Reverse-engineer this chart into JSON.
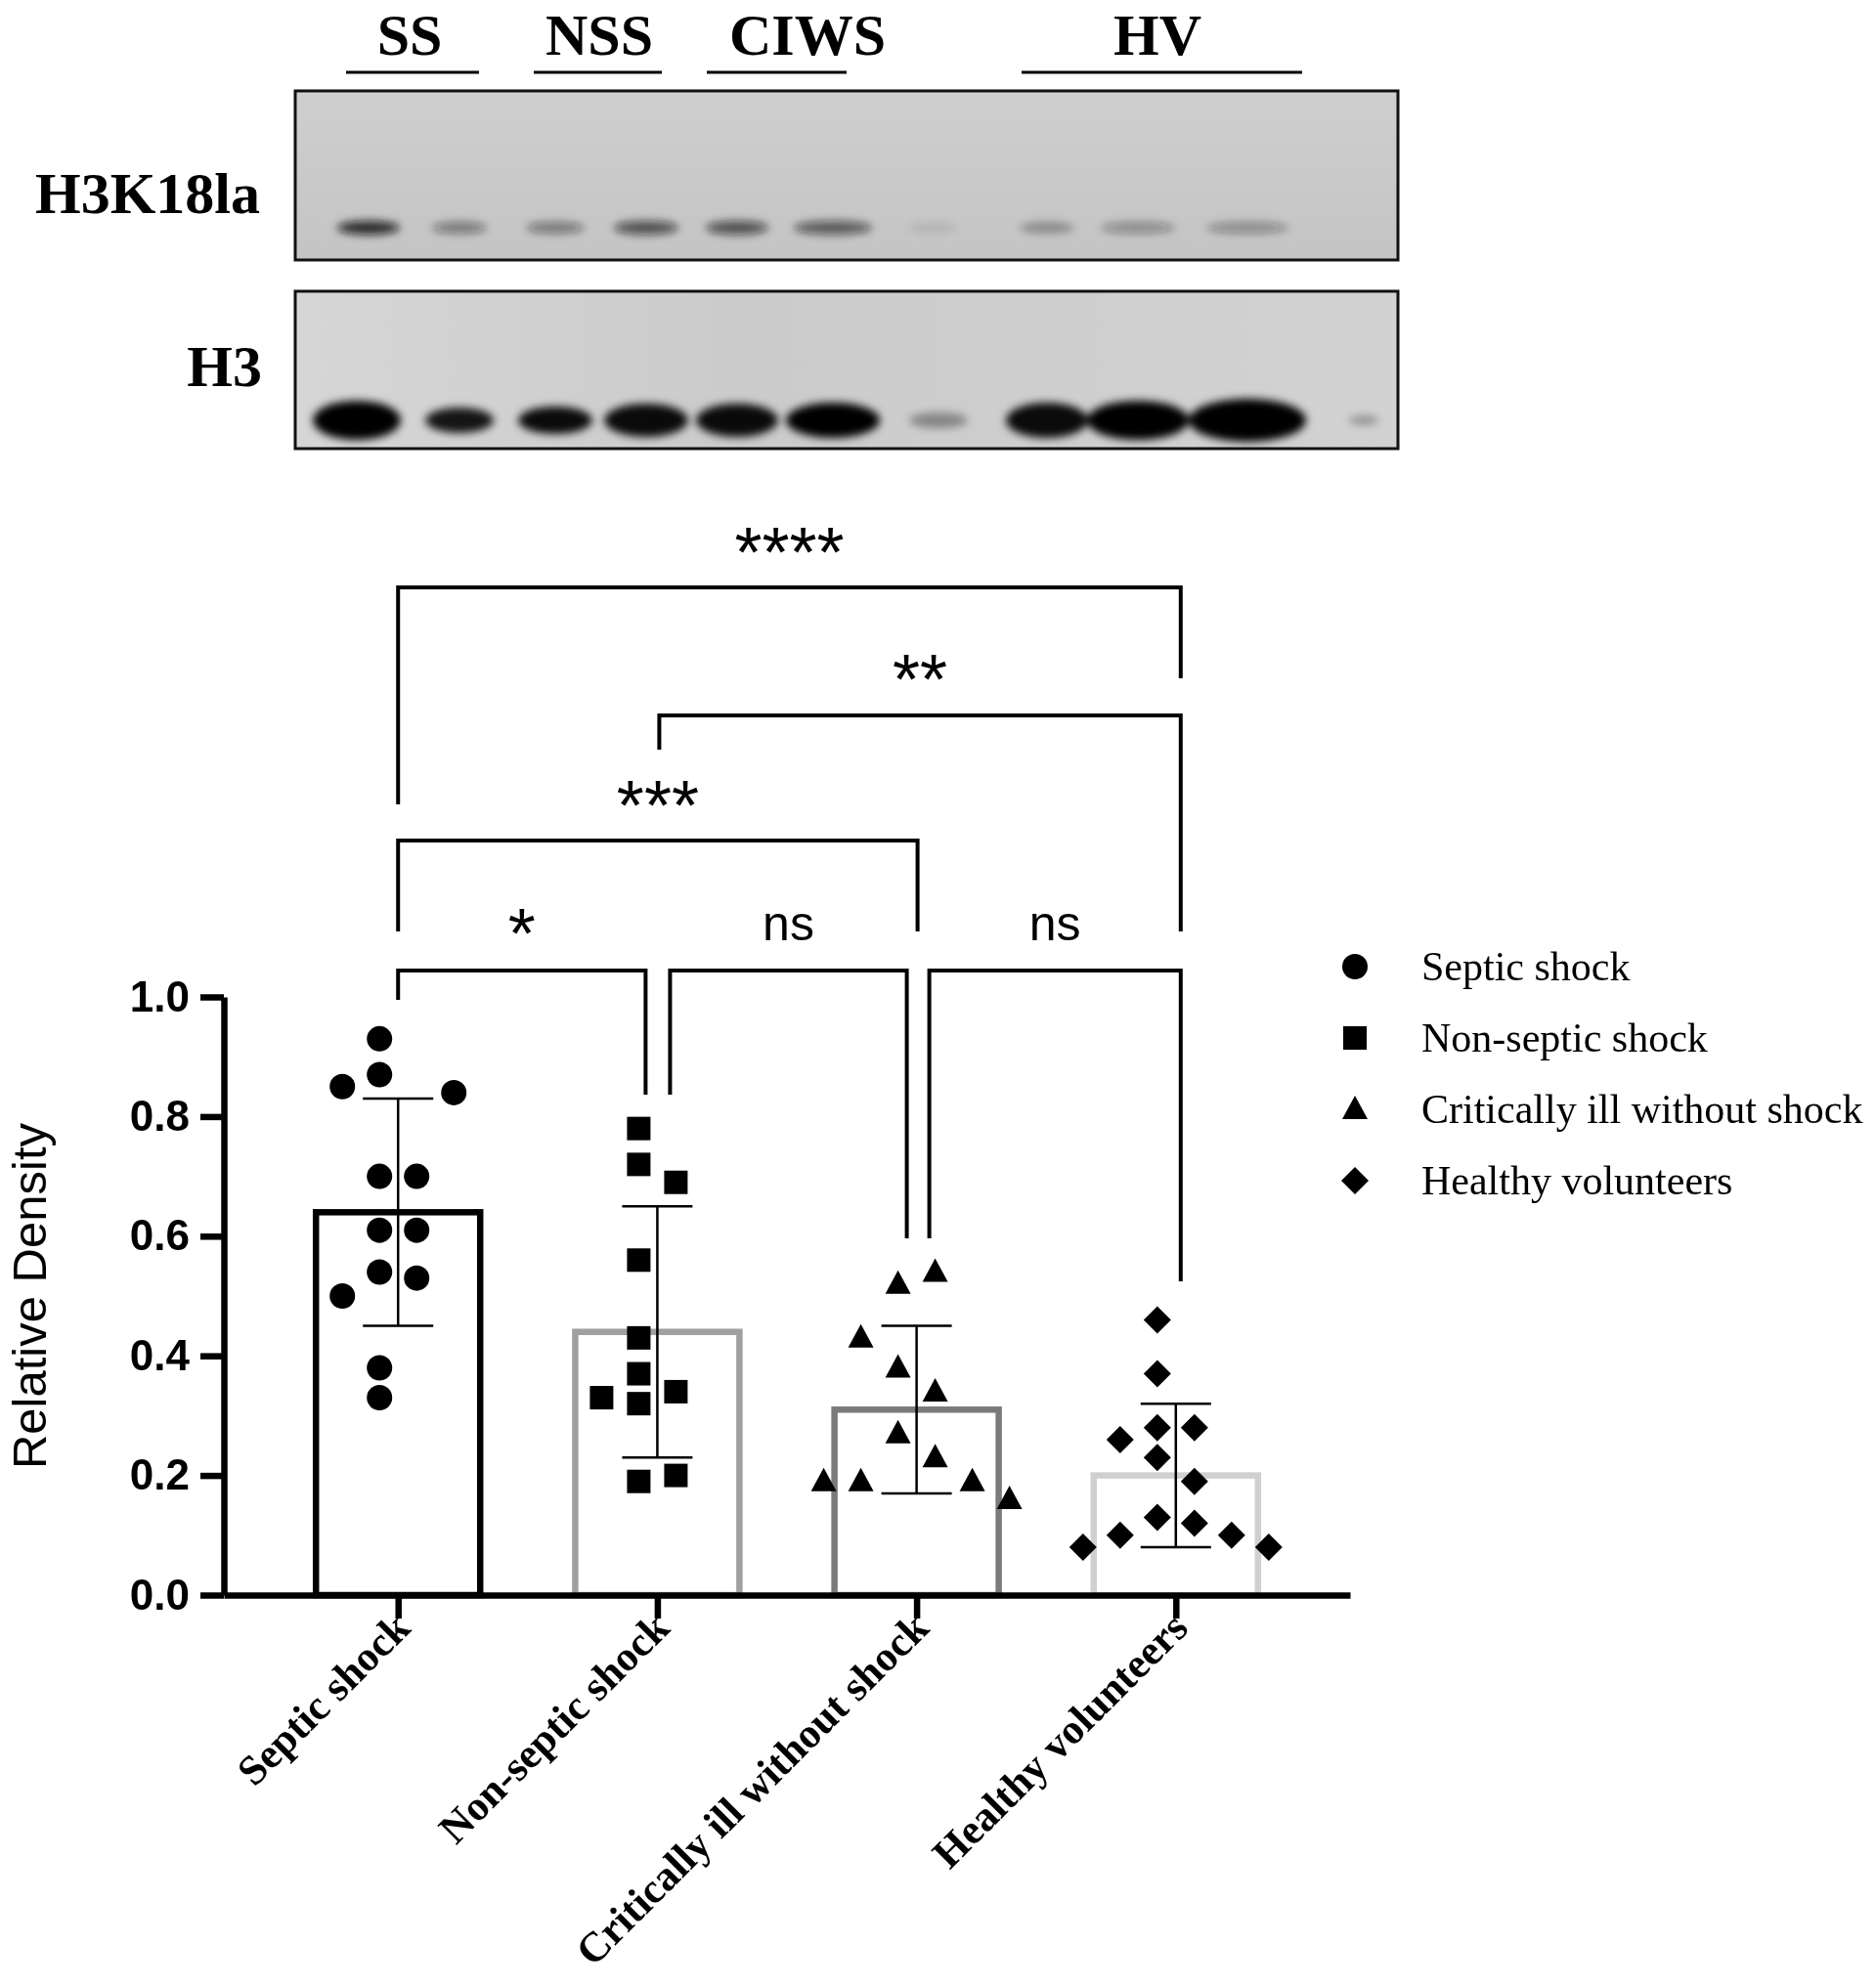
{
  "chart_data": {
    "type": "bar",
    "categories": [
      "Septic shock",
      "Non-septic shock",
      "Critically ill without shock",
      "Healthy volunteers"
    ],
    "series": [
      {
        "colors": [
          "#000000",
          "#a0a0a0",
          "#7a7a7a",
          "#d0d0d0"
        ],
        "values": [
          0.64,
          0.44,
          0.31,
          0.2
        ],
        "errors": [
          0.19,
          0.21,
          0.14,
          0.12
        ]
      },
      {
        "type": "scatter",
        "name": "Septic shock",
        "color": "#000000",
        "marker": "circle",
        "x": [
          "Septic shock",
          "Septic shock",
          "Septic shock",
          "Septic shock",
          "Septic shock",
          "Septic shock",
          "Septic shock",
          "Septic shock",
          "Septic shock",
          "Septic shock",
          "Septic shock",
          "Septic shock",
          "Septic shock"
        ],
        "values": [
          0.93,
          0.85,
          0.84,
          0.87,
          0.7,
          0.7,
          0.61,
          0.61,
          0.54,
          0.53,
          0.5,
          0.38,
          0.33
        ]
      },
      {
        "type": "scatter",
        "name": "Non-septic shock",
        "color": "#000000",
        "marker": "square",
        "x": [
          "Non-septic shock",
          "Non-septic shock",
          "Non-septic shock",
          "Non-septic shock",
          "Non-septic shock",
          "Non-septic shock",
          "Non-septic shock",
          "Non-septic shock",
          "Non-septic shock",
          "Non-septic shock",
          "Non-septic shock"
        ],
        "values": [
          0.78,
          0.72,
          0.69,
          0.56,
          0.43,
          0.37,
          0.34,
          0.33,
          0.32,
          0.19,
          0.2
        ]
      },
      {
        "type": "scatter",
        "name": "Critically ill without shock",
        "color": "#000000",
        "marker": "triangle",
        "x": [
          "Critically ill without shock",
          "Critically ill without shock",
          "Critically ill without shock",
          "Critically ill without shock",
          "Critically ill without shock",
          "Critically ill without shock",
          "Critically ill without shock",
          "Critically ill without shock",
          "Critically ill without shock",
          "Critically ill without shock",
          "Critically ill without shock"
        ],
        "values": [
          0.52,
          0.54,
          0.43,
          0.38,
          0.34,
          0.27,
          0.23,
          0.19,
          0.19,
          0.19,
          0.16
        ]
      },
      {
        "type": "scatter",
        "name": "Healthy volunteers",
        "color": "#000000",
        "marker": "diamond",
        "x": [
          "Healthy volunteers",
          "Healthy volunteers",
          "Healthy volunteers",
          "Healthy volunteers",
          "Healthy volunteers",
          "Healthy volunteers",
          "Healthy volunteers",
          "Healthy volunteers",
          "Healthy volunteers",
          "Healthy volunteers",
          "Healthy volunteers",
          "Healthy volunteers",
          "Healthy volunteers"
        ],
        "values": [
          0.46,
          0.37,
          0.28,
          0.28,
          0.26,
          0.23,
          0.19,
          0.13,
          0.12,
          0.1,
          0.1,
          0.08,
          0.08
        ]
      }
    ],
    "ylim": [
      0,
      1
    ],
    "yticks": [
      {
        "value": 0,
        "label": "0.0"
      },
      0.2,
      0.4,
      0.6,
      0.8,
      {
        "value": 1,
        "label": "1.0"
      }
    ],
    "ylabel": "Relative Density",
    "legend": "right",
    "annotations": [
      "SS",
      "NSS",
      "CIWS",
      "HV",
      "H3K18la",
      "H3",
      "****",
      "**",
      "***",
      "*",
      "ns",
      "ns"
    ]
  }
}
